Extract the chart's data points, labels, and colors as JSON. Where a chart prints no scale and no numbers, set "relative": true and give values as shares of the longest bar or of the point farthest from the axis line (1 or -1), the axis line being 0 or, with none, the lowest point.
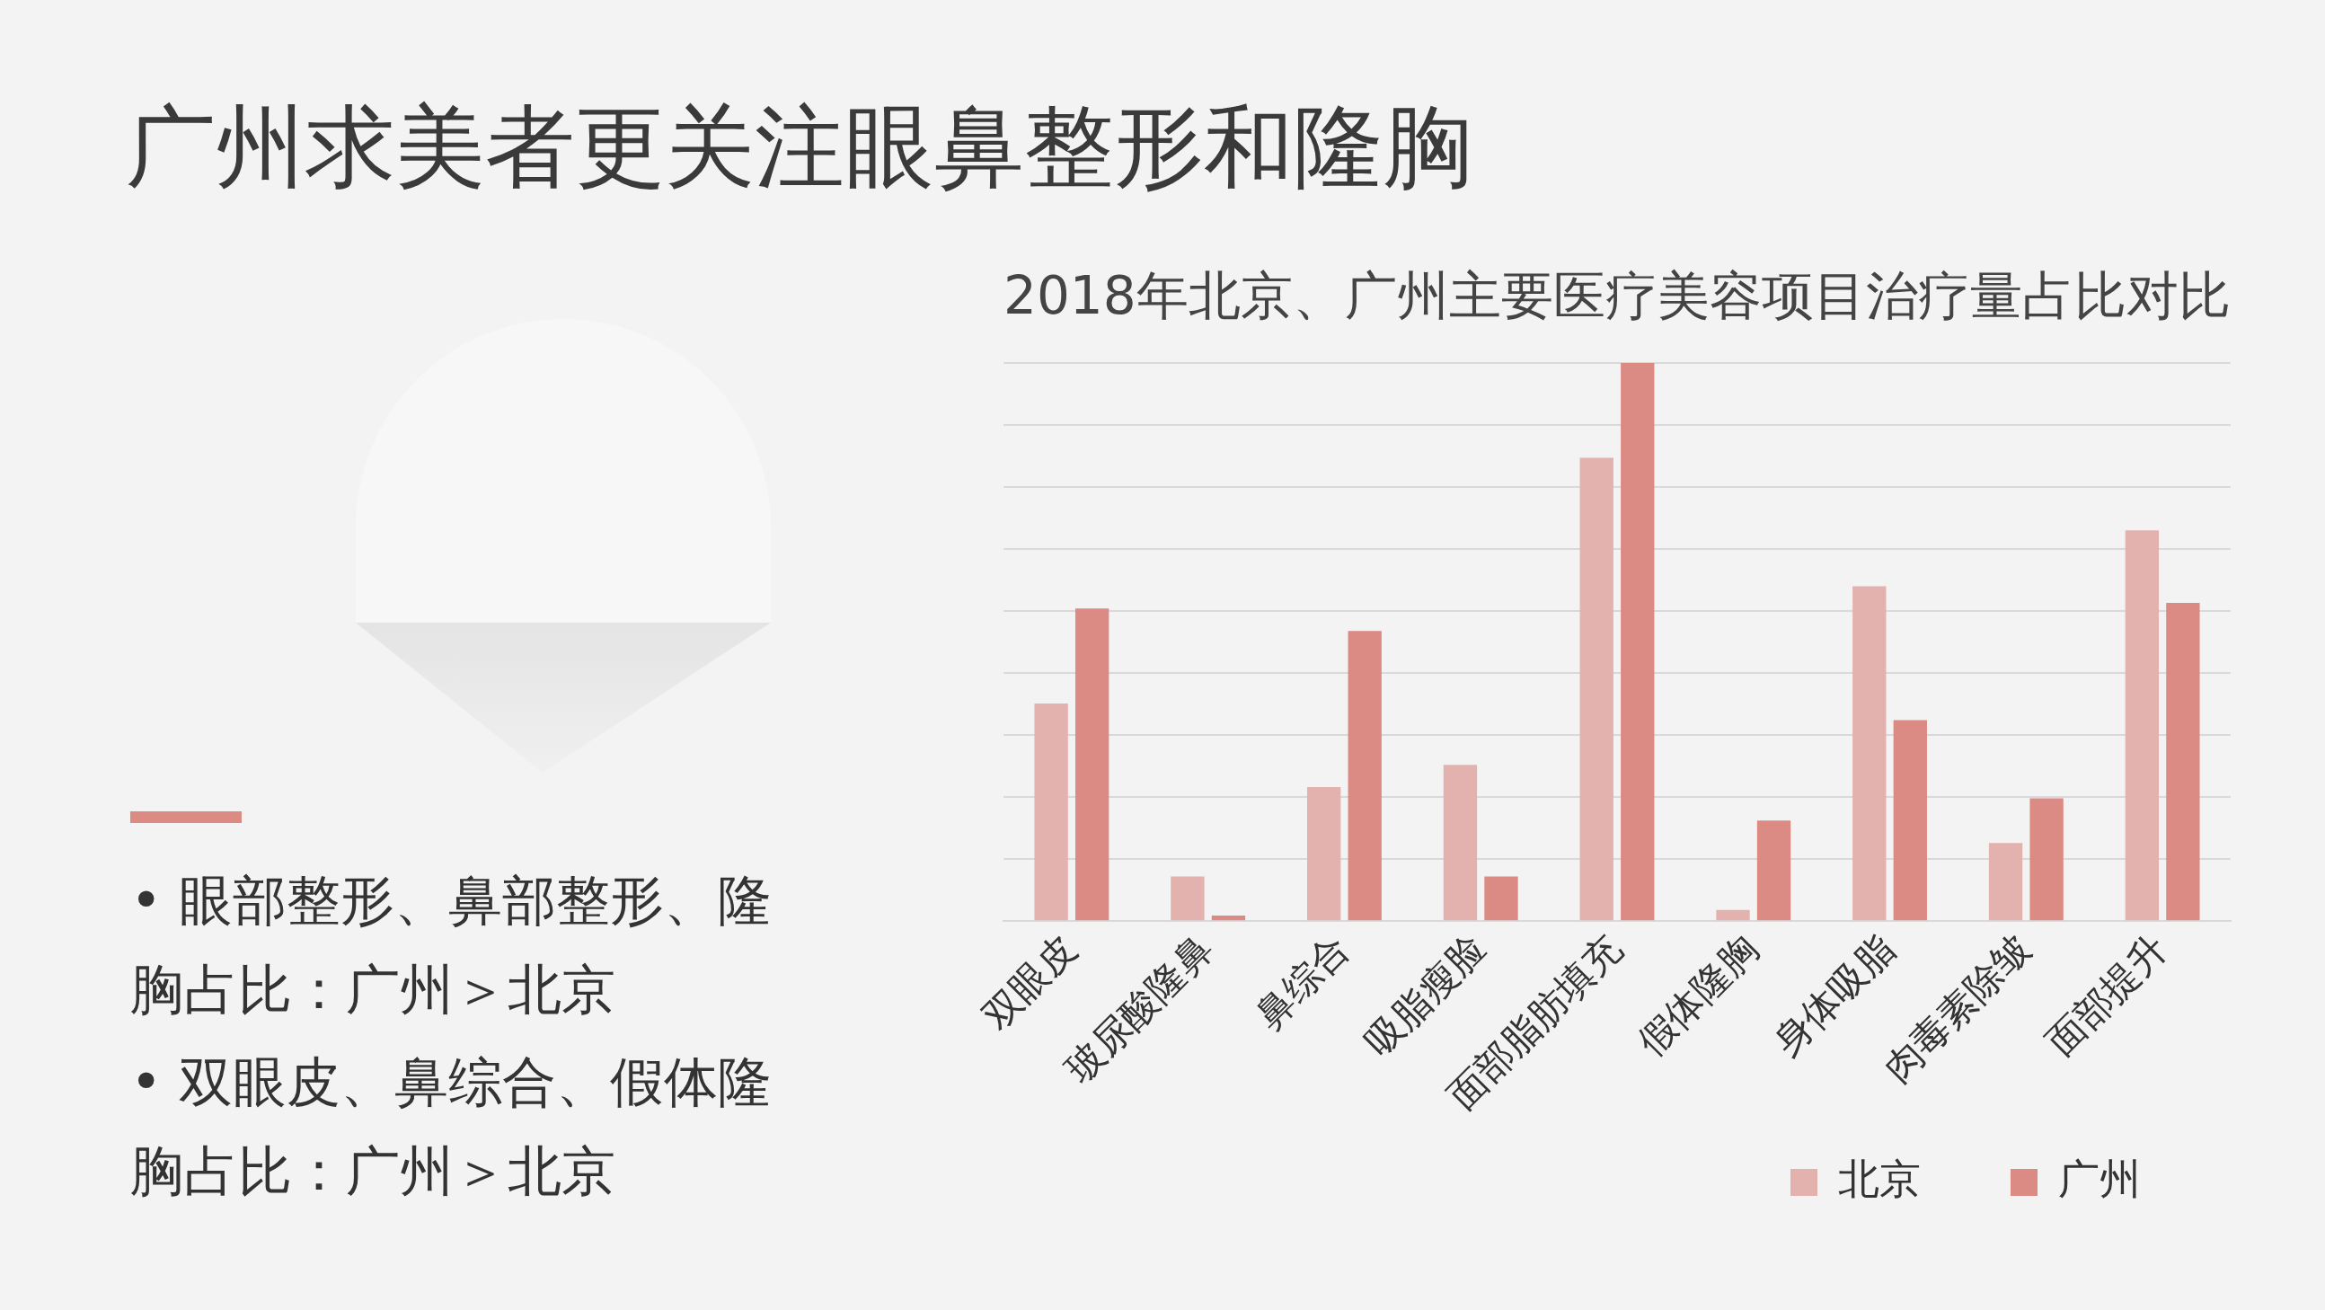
{
  "chart_data": {
    "type": "bar",
    "title": "广州求美者更关注眼鼻整形和隆胸",
    "subtitle": "2018年北京、广州主要医疗美容项目治疗量占比对比",
    "categories": [
      "双眼皮",
      "玻尿酸隆鼻",
      "鼻综合",
      "吸脂瘦脸",
      "面部脂肪填充",
      "假体隆胸",
      "身体吸脂",
      "肉毒素除皱",
      "面部提升"
    ],
    "relative": true,
    "series": [
      {
        "name": "北京",
        "color": "#e3b2ae",
        "values": [
          0.39,
          0.08,
          0.24,
          0.28,
          0.83,
          0.02,
          0.6,
          0.14,
          0.7
        ]
      },
      {
        "name": "广州",
        "color": "#dc8a84",
        "values": [
          0.56,
          0.01,
          0.52,
          0.08,
          1,
          0.18,
          0.36,
          0.22,
          0.57
        ]
      }
    ],
    "grid": "y",
    "legend": "bottom right",
    "annotations": [
      "• 眼部整形、鼻部整形、隆胸占比：广州＞北京",
      "• 双眼皮、鼻综合、假体隆胸占比：广州＞北京"
    ]
  }
}
